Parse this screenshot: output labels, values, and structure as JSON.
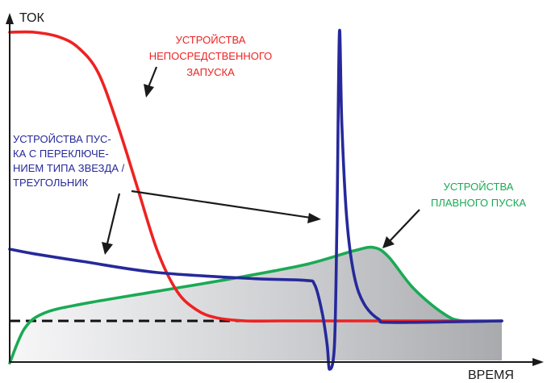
{
  "chart_data": {
    "type": "line",
    "xlabel": "ВРЕМЯ",
    "ylabel": "ТОК",
    "grid": false,
    "series": [
      {
        "name": "УСТРОЙСТВА НЕПОСРЕДСТВЕННОГО ЗАПУСКА",
        "color": "#ee2222",
        "points": [
          [
            0,
            100
          ],
          [
            0.05,
            100
          ],
          [
            0.1,
            98.5
          ],
          [
            0.14,
            95
          ],
          [
            0.18,
            87
          ],
          [
            0.22,
            70
          ],
          [
            0.26,
            50
          ],
          [
            0.3,
            30
          ],
          [
            0.34,
            17
          ],
          [
            0.38,
            11
          ],
          [
            0.42,
            8.5
          ],
          [
            0.48,
            7.5
          ],
          [
            0.55,
            7.5
          ],
          [
            0.7,
            7.5
          ],
          [
            1,
            7.5
          ]
        ]
      },
      {
        "name": "УСТРОЙСТВА ПУСКА С ПЕРЕКЛЮЧЕНИЕМ ТИПА ЗВЕЗДА / ТРЕУГОЛЬНИК",
        "color": "#26299a",
        "points": [
          [
            0,
            30.5
          ],
          [
            0.05,
            29
          ],
          [
            0.15,
            26.5
          ],
          [
            0.3,
            23
          ],
          [
            0.5,
            21
          ],
          [
            0.6,
            20.5
          ],
          [
            0.62,
            19
          ],
          [
            0.635,
            10
          ],
          [
            0.645,
            0
          ],
          [
            0.65,
            -8
          ],
          [
            0.66,
            0
          ],
          [
            0.665,
            40
          ],
          [
            0.67,
            100
          ],
          [
            0.675,
            70
          ],
          [
            0.685,
            40
          ],
          [
            0.7,
            22
          ],
          [
            0.72,
            13
          ],
          [
            0.75,
            8
          ],
          [
            0.78,
            7
          ],
          [
            1,
            7.5
          ]
        ]
      },
      {
        "name": "УСТРОЙСТВА ПЛАВНОГО ПУСКА",
        "color": "#1aaa55",
        "points": [
          [
            0,
            -6
          ],
          [
            0.03,
            5
          ],
          [
            0.07,
            10
          ],
          [
            0.15,
            13
          ],
          [
            0.3,
            17
          ],
          [
            0.45,
            21
          ],
          [
            0.6,
            25.5
          ],
          [
            0.7,
            30
          ],
          [
            0.74,
            31
          ],
          [
            0.77,
            28
          ],
          [
            0.82,
            18
          ],
          [
            0.88,
            10
          ],
          [
            0.92,
            7.5
          ],
          [
            1,
            7.5
          ]
        ]
      }
    ],
    "reference_line": {
      "style": "dashed",
      "y": 7.5,
      "color": "#111111"
    }
  },
  "labels": {
    "direct": [
      "УСТРОЙСТВА",
      "НЕПОСРЕДСТВЕННОГО",
      "ЗАПУСКА"
    ],
    "star_delta": [
      "УСТРОЙСТВА ПУС-",
      "КА С ПЕРЕКЛЮЧЕ-",
      "НИЕМ ТИПА ЗВЕЗДА /",
      "ТРЕУГОЛЬНИК"
    ],
    "soft": [
      "УСТРОЙСТВА",
      "ПЛАВНОГО ПУСКА"
    ]
  },
  "colors": {
    "fill": "#b9babd",
    "axis": "#1a1a1a",
    "arrow": "#1a1a1a"
  }
}
